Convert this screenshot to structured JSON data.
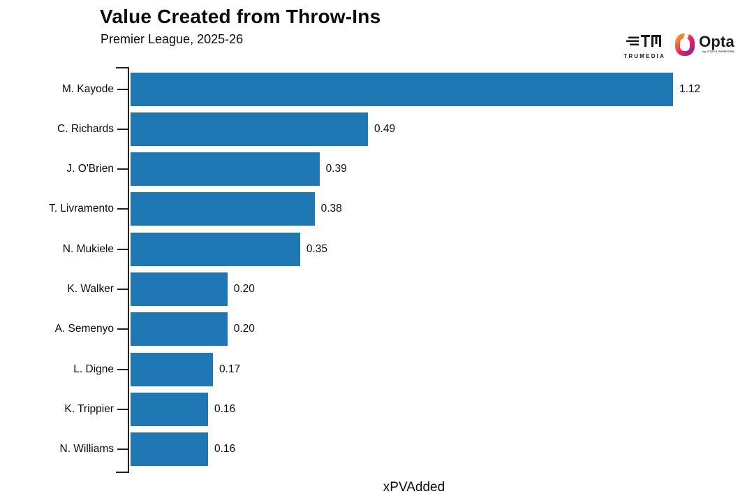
{
  "header": {
    "title": "Value Created from Throw-Ins",
    "subtitle": "Premier League, 2025-26"
  },
  "branding": {
    "trumedia_label": "TRUMEDIA",
    "opta_label": "Opta",
    "opta_sub_label": "by STATS PERFORM",
    "opta_gradient_start": "#F9A01B",
    "opta_gradient_mid": "#ED1C68",
    "opta_gradient_end": "#93268F"
  },
  "chart_data": {
    "type": "bar",
    "orientation": "horizontal",
    "title": "Value Created from Throw-Ins",
    "subtitle": "Premier League, 2025-26",
    "xlabel": "xPVAdded",
    "ylabel": "",
    "xlim": [
      0,
      1.21
    ],
    "grid": false,
    "legend": null,
    "bar_color": "#1f77b4",
    "categories": [
      "M. Kayode",
      "C. Richards",
      "J. O'Brien",
      "T. Livramento",
      "N. Mukiele",
      "K. Walker",
      "A. Semenyo",
      "L. Digne",
      "K. Trippier",
      "N. Williams"
    ],
    "values": [
      1.12,
      0.49,
      0.39,
      0.38,
      0.35,
      0.2,
      0.2,
      0.17,
      0.16,
      0.16
    ],
    "value_labels": [
      "1.12",
      "0.49",
      "0.39",
      "0.38",
      "0.35",
      "0.20",
      "0.20",
      "0.17",
      "0.16",
      "0.16"
    ]
  }
}
